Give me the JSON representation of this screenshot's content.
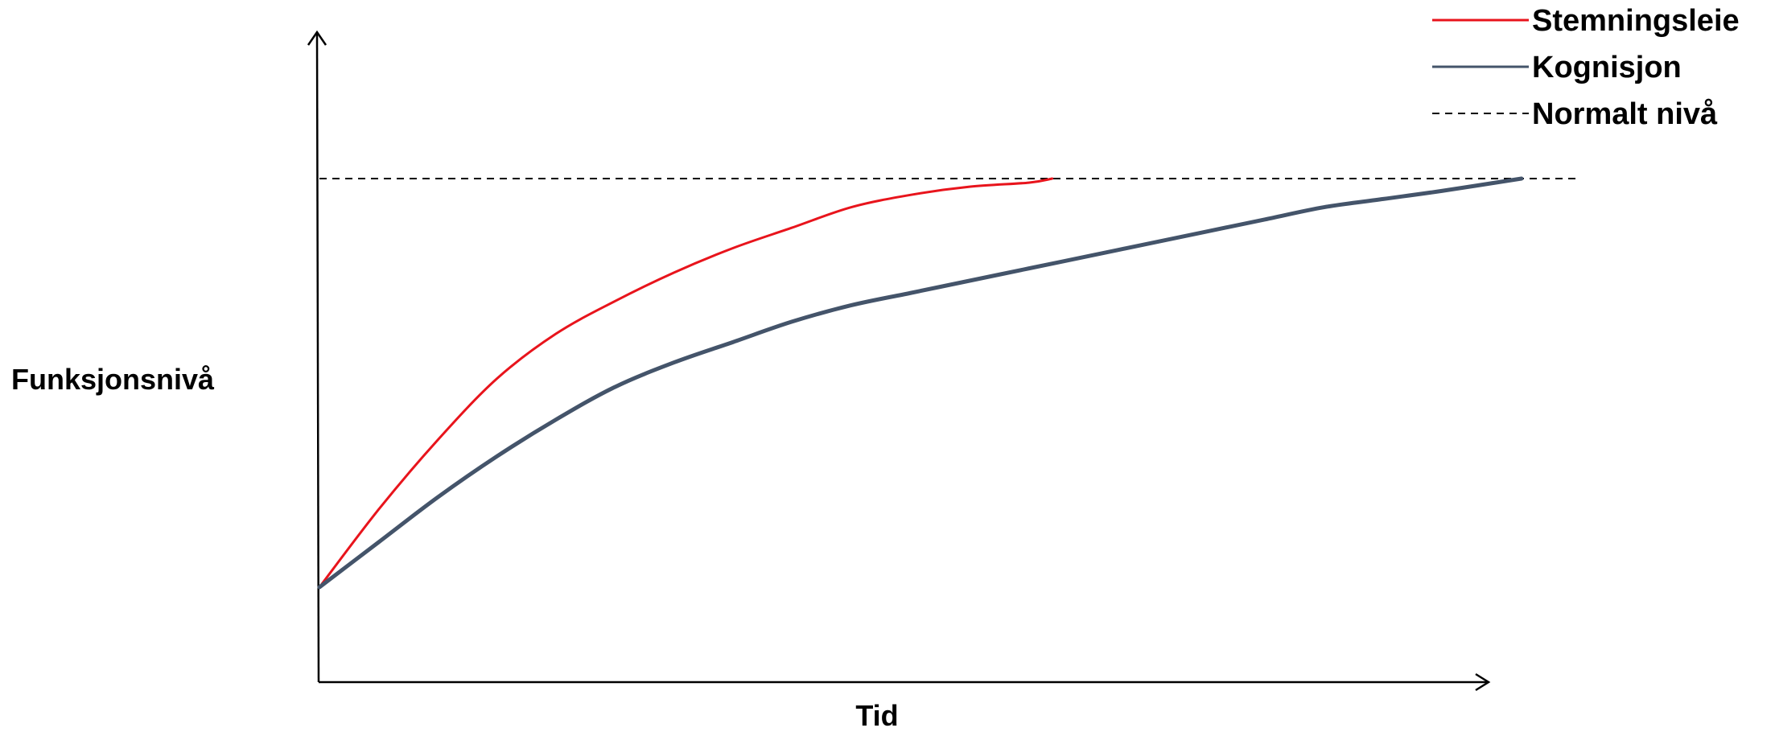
{
  "chart_data": {
    "type": "line",
    "title": "",
    "xlabel": "Tid",
    "ylabel": "Funksjonsnivå",
    "xlim": [
      0,
      100
    ],
    "ylim": [
      0,
      100
    ],
    "grid": false,
    "legend": "top-right",
    "reference_line": {
      "name": "Normalt nivå",
      "y": 100,
      "color": "#000000",
      "style": "dashed"
    },
    "series": [
      {
        "name": "Stemningsleie",
        "color": "#e8141c",
        "x": [
          0,
          5,
          10,
          15,
          20,
          25,
          30,
          35,
          40,
          45,
          50,
          55,
          60,
          62
        ],
        "y": [
          0,
          19,
          36,
          51,
          62,
          70,
          77,
          83,
          88,
          93,
          96,
          98,
          99,
          100
        ]
      },
      {
        "name": "Kognisjon",
        "color": "#44546a",
        "x": [
          0,
          5,
          10,
          15,
          20,
          25,
          30,
          35,
          40,
          45,
          50,
          55,
          60,
          65,
          70,
          75,
          80,
          85,
          90,
          95,
          101.7
        ],
        "y": [
          0,
          11,
          22,
          32,
          41,
          49,
          55,
          60,
          65,
          69,
          72,
          75,
          78,
          81,
          84,
          87,
          90,
          93,
          95,
          97,
          100
        ]
      }
    ]
  }
}
